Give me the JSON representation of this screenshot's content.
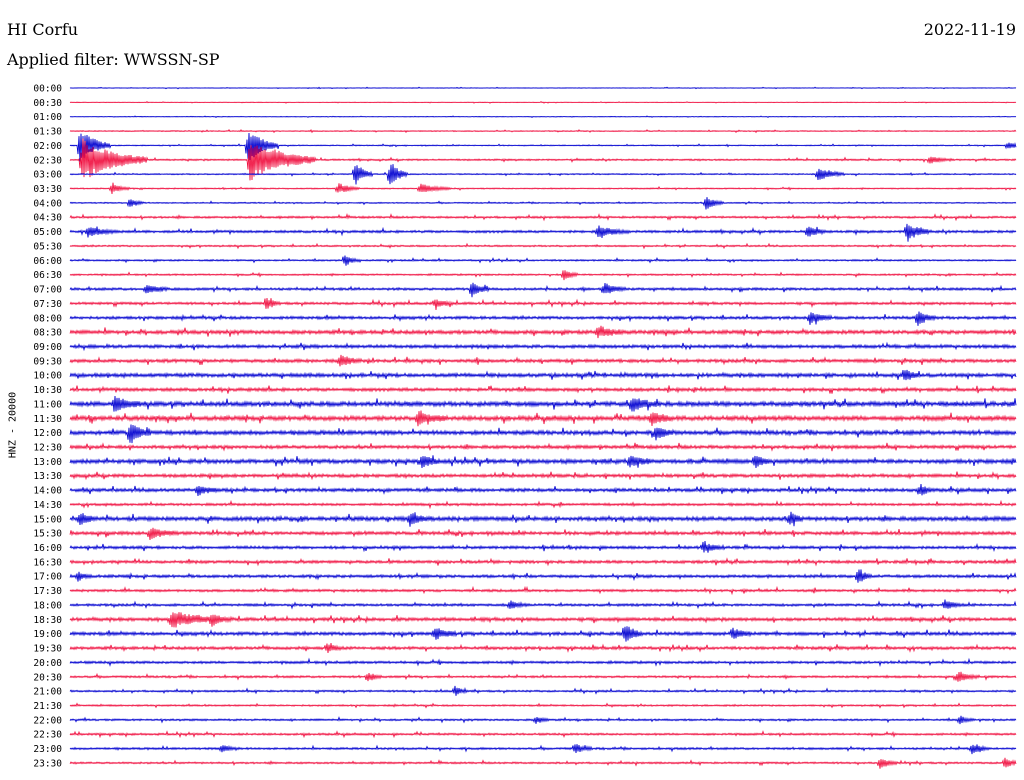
{
  "header": {
    "station": "HI Corfu",
    "date": "2022-11-19",
    "filter_label": "Applied filter:",
    "filter_name": "WWSSN-SP"
  },
  "channel_label": "HNZ - 20000",
  "colors": {
    "even_row": "#0000d0",
    "odd_row": "#f01040",
    "text": "#000000"
  },
  "chart_data": {
    "type": "line",
    "title": "HI Corfu",
    "subtitle": "Applied filter: WWSSN-SP",
    "ylabel": "HNZ - 20000",
    "rows": [
      "00:00",
      "00:30",
      "01:00",
      "01:30",
      "02:00",
      "02:30",
      "03:00",
      "03:30",
      "04:00",
      "04:30",
      "05:00",
      "05:30",
      "06:00",
      "06:30",
      "07:00",
      "07:30",
      "08:00",
      "08:30",
      "09:00",
      "09:30",
      "10:00",
      "10:30",
      "11:00",
      "11:30",
      "12:00",
      "12:30",
      "13:00",
      "13:30",
      "14:00",
      "14:30",
      "15:00",
      "15:30",
      "16:00",
      "16:30",
      "17:00",
      "17:30",
      "18:00",
      "18:30",
      "19:00",
      "19:30",
      "20:00",
      "20:30",
      "21:00",
      "21:30",
      "22:00",
      "22:30",
      "23:00",
      "23:30"
    ],
    "row_noise": [
      0.3,
      0.3,
      0.3,
      0.5,
      0.5,
      0.8,
      0.6,
      0.6,
      0.6,
      1.0,
      1.2,
      0.8,
      0.8,
      0.8,
      1.2,
      1.2,
      1.4,
      1.8,
      1.6,
      1.6,
      1.8,
      1.6,
      2.2,
      2.2,
      2.0,
      1.6,
      2.0,
      1.6,
      1.6,
      1.2,
      2.0,
      1.6,
      1.4,
      1.4,
      1.4,
      1.2,
      1.2,
      1.6,
      1.6,
      1.4,
      1.2,
      1.0,
      0.9,
      0.8,
      0.9,
      1.0,
      1.0,
      0.9
    ],
    "events": [
      {
        "row": 4,
        "x": 80,
        "amp": 18,
        "dur": 14
      },
      {
        "row": 4,
        "x": 248,
        "amp": 18,
        "dur": 14
      },
      {
        "row": 5,
        "x": 82,
        "amp": 22,
        "dur": 30
      },
      {
        "row": 5,
        "x": 250,
        "amp": 22,
        "dur": 30
      },
      {
        "row": 5,
        "x": 930,
        "amp": 4,
        "dur": 10
      },
      {
        "row": 4,
        "x": 1008,
        "amp": 4,
        "dur": 8
      },
      {
        "row": 6,
        "x": 355,
        "amp": 12,
        "dur": 8
      },
      {
        "row": 6,
        "x": 390,
        "amp": 14,
        "dur": 8
      },
      {
        "row": 6,
        "x": 818,
        "amp": 7,
        "dur": 12
      },
      {
        "row": 7,
        "x": 112,
        "amp": 5,
        "dur": 8
      },
      {
        "row": 7,
        "x": 338,
        "amp": 6,
        "dur": 10
      },
      {
        "row": 7,
        "x": 420,
        "amp": 5,
        "dur": 14
      },
      {
        "row": 8,
        "x": 130,
        "amp": 6,
        "dur": 6
      },
      {
        "row": 8,
        "x": 706,
        "amp": 7,
        "dur": 8
      },
      {
        "row": 10,
        "x": 88,
        "amp": 5,
        "dur": 14
      },
      {
        "row": 10,
        "x": 598,
        "amp": 6,
        "dur": 14
      },
      {
        "row": 10,
        "x": 808,
        "amp": 6,
        "dur": 8
      },
      {
        "row": 10,
        "x": 907,
        "amp": 10,
        "dur": 10
      },
      {
        "row": 12,
        "x": 345,
        "amp": 6,
        "dur": 6
      },
      {
        "row": 13,
        "x": 564,
        "amp": 7,
        "dur": 6
      },
      {
        "row": 14,
        "x": 146,
        "amp": 5,
        "dur": 10
      },
      {
        "row": 14,
        "x": 472,
        "amp": 8,
        "dur": 8
      },
      {
        "row": 14,
        "x": 604,
        "amp": 6,
        "dur": 10
      },
      {
        "row": 15,
        "x": 267,
        "amp": 6,
        "dur": 6
      },
      {
        "row": 15,
        "x": 435,
        "amp": 5,
        "dur": 8
      },
      {
        "row": 16,
        "x": 918,
        "amp": 8,
        "dur": 8
      },
      {
        "row": 16,
        "x": 810,
        "amp": 7,
        "dur": 10
      },
      {
        "row": 17,
        "x": 598,
        "amp": 6,
        "dur": 12
      },
      {
        "row": 19,
        "x": 340,
        "amp": 6,
        "dur": 10
      },
      {
        "row": 20,
        "x": 905,
        "amp": 7,
        "dur": 6
      },
      {
        "row": 22,
        "x": 115,
        "amp": 7,
        "dur": 12
      },
      {
        "row": 22,
        "x": 632,
        "amp": 7,
        "dur": 12
      },
      {
        "row": 23,
        "x": 418,
        "amp": 6,
        "dur": 14
      },
      {
        "row": 23,
        "x": 652,
        "amp": 7,
        "dur": 10
      },
      {
        "row": 24,
        "x": 130,
        "amp": 10,
        "dur": 10
      },
      {
        "row": 24,
        "x": 656,
        "amp": 7,
        "dur": 8
      },
      {
        "row": 26,
        "x": 422,
        "amp": 7,
        "dur": 8
      },
      {
        "row": 26,
        "x": 630,
        "amp": 6,
        "dur": 10
      },
      {
        "row": 26,
        "x": 755,
        "amp": 7,
        "dur": 6
      },
      {
        "row": 28,
        "x": 198,
        "amp": 5,
        "dur": 10
      },
      {
        "row": 28,
        "x": 920,
        "amp": 6,
        "dur": 6
      },
      {
        "row": 30,
        "x": 80,
        "amp": 6,
        "dur": 8
      },
      {
        "row": 30,
        "x": 410,
        "amp": 6,
        "dur": 10
      },
      {
        "row": 30,
        "x": 790,
        "amp": 7,
        "dur": 6
      },
      {
        "row": 31,
        "x": 150,
        "amp": 6,
        "dur": 12
      },
      {
        "row": 32,
        "x": 703,
        "amp": 5,
        "dur": 10
      },
      {
        "row": 34,
        "x": 78,
        "amp": 5,
        "dur": 6
      },
      {
        "row": 34,
        "x": 858,
        "amp": 8,
        "dur": 6
      },
      {
        "row": 36,
        "x": 945,
        "amp": 5,
        "dur": 8
      },
      {
        "row": 36,
        "x": 510,
        "amp": 4,
        "dur": 8
      },
      {
        "row": 37,
        "x": 172,
        "amp": 9,
        "dur": 22
      },
      {
        "row": 37,
        "x": 212,
        "amp": 5,
        "dur": 10
      },
      {
        "row": 38,
        "x": 625,
        "amp": 10,
        "dur": 8
      },
      {
        "row": 38,
        "x": 435,
        "amp": 6,
        "dur": 10
      },
      {
        "row": 38,
        "x": 733,
        "amp": 6,
        "dur": 8
      },
      {
        "row": 39,
        "x": 327,
        "amp": 5,
        "dur": 6
      },
      {
        "row": 41,
        "x": 368,
        "amp": 5,
        "dur": 6
      },
      {
        "row": 41,
        "x": 958,
        "amp": 5,
        "dur": 10
      },
      {
        "row": 42,
        "x": 455,
        "amp": 5,
        "dur": 6
      },
      {
        "row": 44,
        "x": 536,
        "amp": 4,
        "dur": 6
      },
      {
        "row": 44,
        "x": 960,
        "amp": 4,
        "dur": 6
      },
      {
        "row": 46,
        "x": 222,
        "amp": 4,
        "dur": 8
      },
      {
        "row": 46,
        "x": 575,
        "amp": 5,
        "dur": 8
      },
      {
        "row": 46,
        "x": 972,
        "amp": 5,
        "dur": 8
      },
      {
        "row": 47,
        "x": 880,
        "amp": 6,
        "dur": 8
      },
      {
        "row": 47,
        "x": 1005,
        "amp": 6,
        "dur": 6
      }
    ]
  }
}
